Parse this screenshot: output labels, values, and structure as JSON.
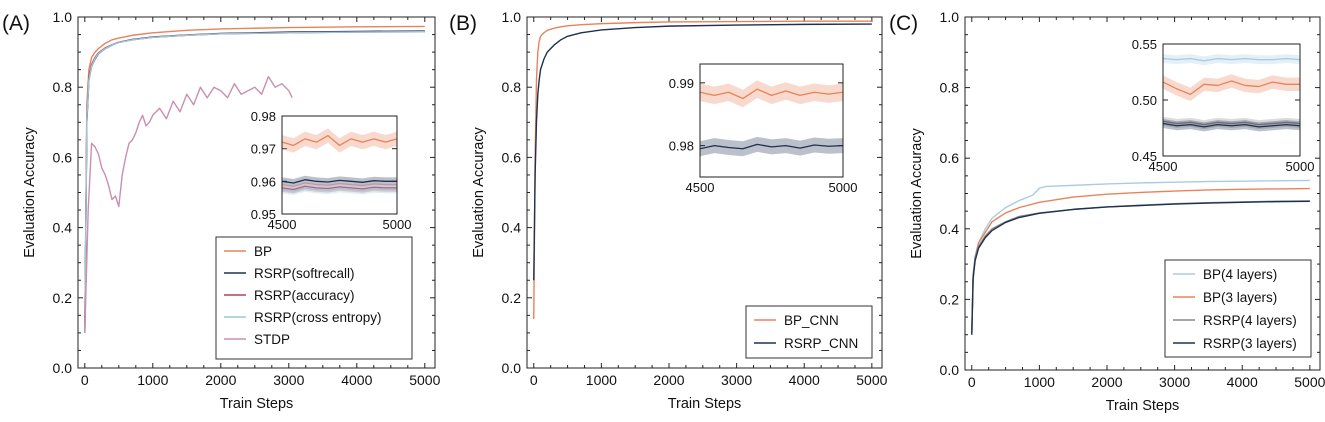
{
  "figure": {
    "panel_labels": [
      "(A)",
      "(B)",
      "(C)"
    ]
  },
  "chart_data": [
    {
      "type": "line",
      "label": "(A)",
      "xlabel": "Train Steps",
      "ylabel": "Evaluation Accuracy",
      "xlim": [
        -100,
        5150
      ],
      "ylim": [
        0.0,
        1.0
      ],
      "xticks": [
        0,
        1000,
        2000,
        3000,
        4000,
        5000
      ],
      "yticks": [
        0.0,
        0.2,
        0.4,
        0.6,
        0.8,
        1.0
      ],
      "legend_position": "bottom-right",
      "series": [
        {
          "name": "BP",
          "color": "#e8825a",
          "x": [
            0,
            30,
            60,
            100,
            150,
            200,
            300,
            400,
            500,
            700,
            1000,
            1500,
            2000,
            3000,
            4000,
            5000
          ],
          "y": [
            0.1,
            0.75,
            0.85,
            0.885,
            0.9,
            0.91,
            0.925,
            0.935,
            0.94,
            0.948,
            0.955,
            0.962,
            0.966,
            0.97,
            0.972,
            0.973
          ]
        },
        {
          "name": "RSRP(softrecall)",
          "color": "#1f3050",
          "x": [
            0,
            30,
            60,
            100,
            150,
            200,
            300,
            400,
            500,
            700,
            1000,
            1500,
            2000,
            3000,
            4000,
            5000
          ],
          "y": [
            0.1,
            0.7,
            0.82,
            0.86,
            0.88,
            0.895,
            0.91,
            0.92,
            0.928,
            0.936,
            0.943,
            0.949,
            0.953,
            0.957,
            0.959,
            0.96
          ]
        },
        {
          "name": "RSRP(accuracy)",
          "color": "#b0435a",
          "x": [
            0,
            30,
            60,
            100,
            150,
            200,
            300,
            400,
            500,
            700,
            1000,
            1500,
            2000,
            3000,
            4000,
            5000
          ],
          "y": [
            0.1,
            0.72,
            0.83,
            0.865,
            0.885,
            0.898,
            0.912,
            0.921,
            0.928,
            0.935,
            0.942,
            0.948,
            0.952,
            0.955,
            0.957,
            0.958
          ]
        },
        {
          "name": "RSRP(cross entropy)",
          "color": "#9ec5d6",
          "x": [
            0,
            30,
            60,
            100,
            150,
            200,
            300,
            400,
            500,
            700,
            1000,
            1500,
            2000,
            3000,
            4000,
            5000
          ],
          "y": [
            0.1,
            0.71,
            0.82,
            0.86,
            0.882,
            0.896,
            0.91,
            0.92,
            0.927,
            0.935,
            0.942,
            0.948,
            0.952,
            0.955,
            0.957,
            0.958
          ]
        },
        {
          "name": "STDP",
          "color": "#c98fb0",
          "x": [
            0,
            50,
            100,
            150,
            200,
            250,
            300,
            350,
            400,
            450,
            500,
            550,
            600,
            650,
            700,
            750,
            800,
            850,
            900,
            950,
            1000,
            1100,
            1200,
            1300,
            1400,
            1500,
            1600,
            1700,
            1800,
            1900,
            2000,
            2100,
            2200,
            2300,
            2400,
            2500,
            2600,
            2700,
            2800,
            2900,
            3000,
            3050
          ],
          "y": [
            0.1,
            0.45,
            0.64,
            0.63,
            0.61,
            0.57,
            0.55,
            0.52,
            0.48,
            0.49,
            0.46,
            0.55,
            0.6,
            0.64,
            0.65,
            0.67,
            0.7,
            0.72,
            0.69,
            0.7,
            0.72,
            0.74,
            0.71,
            0.76,
            0.73,
            0.78,
            0.75,
            0.8,
            0.77,
            0.8,
            0.79,
            0.77,
            0.81,
            0.78,
            0.79,
            0.8,
            0.78,
            0.83,
            0.8,
            0.81,
            0.79,
            0.77
          ]
        }
      ],
      "inset": {
        "legend": false,
        "xlim": [
          4500,
          5000
        ],
        "ylim": [
          0.95,
          0.98
        ],
        "xticks": [
          4500,
          5000
        ],
        "yticks": [
          0.95,
          0.96,
          0.97,
          0.98
        ],
        "position": "right-middle",
        "series": [
          {
            "name": "BP",
            "color": "#e8825a",
            "band": 0.0022,
            "x": [
              4500,
              4550,
              4600,
              4650,
              4700,
              4750,
              4800,
              4850,
              4900,
              4950,
              5000
            ],
            "y": [
              0.972,
              0.971,
              0.973,
              0.972,
              0.974,
              0.971,
              0.973,
              0.972,
              0.973,
              0.972,
              0.973
            ]
          },
          {
            "name": "RSRP(softrecall)",
            "color": "#1f3050",
            "band": 0.0012,
            "x": [
              4500,
              4550,
              4600,
              4650,
              4700,
              4750,
              4800,
              4850,
              4900,
              4950,
              5000
            ],
            "y": [
              0.96,
              0.9595,
              0.9605,
              0.96,
              0.9598,
              0.9603,
              0.96,
              0.9597,
              0.9602,
              0.96,
              0.96
            ]
          },
          {
            "name": "RSRP(accuracy)",
            "color": "#b0435a",
            "band": 0.0012,
            "x": [
              4500,
              4550,
              4600,
              4650,
              4700,
              4750,
              4800,
              4850,
              4900,
              4950,
              5000
            ],
            "y": [
              0.958,
              0.9575,
              0.9585,
              0.958,
              0.9578,
              0.9583,
              0.958,
              0.9577,
              0.9582,
              0.958,
              0.958
            ]
          },
          {
            "name": "RSRP(cross entropy)",
            "color": "#9ec5d6",
            "band": 0.0012,
            "x": [
              4500,
              4550,
              4600,
              4650,
              4700,
              4750,
              4800,
              4850,
              4900,
              4950,
              5000
            ],
            "y": [
              0.9575,
              0.957,
              0.958,
              0.9575,
              0.9573,
              0.9578,
              0.9575,
              0.9572,
              0.9577,
              0.9575,
              0.9575
            ]
          }
        ]
      }
    },
    {
      "type": "line",
      "label": "(B)",
      "xlabel": "Train Steps",
      "ylabel": "Evaluation Accuracy",
      "xlim": [
        -100,
        5150
      ],
      "ylim": [
        0.0,
        1.0
      ],
      "xticks": [
        0,
        1000,
        2000,
        3000,
        4000,
        5000
      ],
      "yticks": [
        0.0,
        0.2,
        0.4,
        0.6,
        0.8,
        1.0
      ],
      "legend_position": "bottom-right",
      "series": [
        {
          "name": "BP_CNN",
          "color": "#e8825a",
          "x": [
            0,
            20,
            40,
            60,
            80,
            100,
            150,
            200,
            300,
            400,
            500,
            700,
            1000,
            1500,
            2000,
            3000,
            4000,
            5000
          ],
          "y": [
            0.14,
            0.6,
            0.82,
            0.9,
            0.93,
            0.945,
            0.955,
            0.962,
            0.968,
            0.972,
            0.975,
            0.978,
            0.981,
            0.984,
            0.986,
            0.987,
            0.988,
            0.988
          ]
        },
        {
          "name": "RSRP_CNN",
          "color": "#1f3050",
          "x": [
            0,
            20,
            40,
            60,
            80,
            100,
            150,
            200,
            300,
            400,
            500,
            700,
            1000,
            1500,
            2000,
            3000,
            4000,
            5000
          ],
          "y": [
            0.25,
            0.55,
            0.7,
            0.78,
            0.82,
            0.85,
            0.88,
            0.9,
            0.92,
            0.935,
            0.945,
            0.955,
            0.963,
            0.97,
            0.974,
            0.977,
            0.979,
            0.98
          ]
        }
      ],
      "inset": {
        "legend": false,
        "xlim": [
          4500,
          5000
        ],
        "ylim": [
          0.975,
          0.993
        ],
        "xticks": [
          4500,
          5000
        ],
        "yticks": [
          0.98,
          0.99
        ],
        "position": "top-right",
        "series": [
          {
            "name": "BP_CNN",
            "color": "#e8825a",
            "band": 0.0014,
            "x": [
              4500,
              4550,
              4600,
              4650,
              4700,
              4750,
              4800,
              4850,
              4900,
              4950,
              5000
            ],
            "y": [
              0.9885,
              0.988,
              0.9885,
              0.9875,
              0.989,
              0.988,
              0.9887,
              0.988,
              0.9885,
              0.9882,
              0.9885
            ]
          },
          {
            "name": "RSRP_CNN",
            "color": "#1f3050",
            "band": 0.0012,
            "x": [
              4500,
              4550,
              4600,
              4650,
              4700,
              4750,
              4800,
              4850,
              4900,
              4950,
              5000
            ],
            "y": [
              0.9795,
              0.98,
              0.9797,
              0.9795,
              0.9802,
              0.9798,
              0.98,
              0.9796,
              0.9801,
              0.9799,
              0.98
            ]
          }
        ]
      }
    },
    {
      "type": "line",
      "label": "(C)",
      "xlabel": "Train Steps",
      "ylabel": "Evaluation Accuracy",
      "xlim": [
        -100,
        5150
      ],
      "ylim": [
        0.0,
        1.0
      ],
      "xticks": [
        0,
        1000,
        2000,
        3000,
        4000,
        5000
      ],
      "yticks": [
        0.0,
        0.2,
        0.4,
        0.6,
        0.8,
        1.0
      ],
      "legend_position": "bottom-right",
      "series": [
        {
          "name": "BP(4 layers)",
          "color": "#a9cde0",
          "x": [
            0,
            20,
            50,
            100,
            200,
            300,
            500,
            700,
            900,
            1000,
            1100,
            1500,
            2000,
            2500,
            3000,
            3500,
            4000,
            4500,
            5000
          ],
          "y": [
            0.1,
            0.25,
            0.32,
            0.36,
            0.4,
            0.43,
            0.46,
            0.48,
            0.495,
            0.515,
            0.52,
            0.523,
            0.527,
            0.53,
            0.532,
            0.534,
            0.535,
            0.536,
            0.537
          ]
        },
        {
          "name": "BP(3 layers)",
          "color": "#e8825a",
          "x": [
            0,
            20,
            50,
            100,
            200,
            300,
            500,
            700,
            1000,
            1500,
            2000,
            2500,
            3000,
            3500,
            4000,
            4500,
            5000
          ],
          "y": [
            0.1,
            0.26,
            0.32,
            0.36,
            0.39,
            0.42,
            0.445,
            0.46,
            0.475,
            0.49,
            0.498,
            0.503,
            0.507,
            0.51,
            0.512,
            0.513,
            0.514
          ]
        },
        {
          "name": "RSRP(4 layers)",
          "color": "#888888",
          "x": [
            0,
            20,
            50,
            100,
            200,
            300,
            500,
            700,
            1000,
            1500,
            2000,
            2500,
            3000,
            3500,
            4000,
            4500,
            5000
          ],
          "y": [
            0.1,
            0.27,
            0.32,
            0.35,
            0.38,
            0.4,
            0.42,
            0.435,
            0.445,
            0.455,
            0.462,
            0.467,
            0.471,
            0.474,
            0.476,
            0.478,
            0.479
          ]
        },
        {
          "name": "RSRP(3 layers)",
          "color": "#1f3050",
          "x": [
            0,
            20,
            50,
            100,
            200,
            300,
            500,
            700,
            1000,
            1500,
            2000,
            2500,
            3000,
            3500,
            4000,
            4500,
            5000
          ],
          "y": [
            0.1,
            0.26,
            0.31,
            0.345,
            0.375,
            0.395,
            0.418,
            0.432,
            0.444,
            0.455,
            0.462,
            0.466,
            0.47,
            0.473,
            0.475,
            0.477,
            0.478
          ]
        }
      ],
      "inset": {
        "legend": false,
        "xlim": [
          4500,
          5000
        ],
        "ylim": [
          0.45,
          0.55
        ],
        "xticks": [
          4500,
          5000
        ],
        "yticks": [
          0.45,
          0.5,
          0.55
        ],
        "position": "top-right",
        "series": [
          {
            "name": "BP(4 layers)",
            "color": "#a9cde0",
            "band": 0.004,
            "x": [
              4500,
              4550,
              4600,
              4650,
              4700,
              4750,
              4800,
              4850,
              4900,
              4950,
              5000
            ],
            "y": [
              0.537,
              0.536,
              0.537,
              0.535,
              0.537,
              0.536,
              0.537,
              0.536,
              0.536,
              0.537,
              0.536
            ]
          },
          {
            "name": "BP(3 layers)",
            "color": "#e8825a",
            "band": 0.006,
            "x": [
              4500,
              4550,
              4600,
              4650,
              4700,
              4750,
              4800,
              4850,
              4900,
              4950,
              5000
            ],
            "y": [
              0.516,
              0.51,
              0.505,
              0.514,
              0.513,
              0.517,
              0.513,
              0.512,
              0.516,
              0.514,
              0.514
            ]
          },
          {
            "name": "RSRP(4 layers)",
            "color": "#888888",
            "band": 0.004,
            "x": [
              4500,
              4550,
              4600,
              4650,
              4700,
              4750,
              4800,
              4850,
              4900,
              4950,
              5000
            ],
            "y": [
              0.481,
              0.479,
              0.48,
              0.478,
              0.48,
              0.479,
              0.48,
              0.478,
              0.479,
              0.48,
              0.479
            ]
          },
          {
            "name": "RSRP(3 layers)",
            "color": "#1f3050",
            "band": 0.004,
            "x": [
              4500,
              4550,
              4600,
              4650,
              4700,
              4750,
              4800,
              4850,
              4900,
              4950,
              5000
            ],
            "y": [
              0.479,
              0.477,
              0.478,
              0.476,
              0.478,
              0.477,
              0.478,
              0.476,
              0.477,
              0.478,
              0.477
            ]
          }
        ]
      }
    }
  ]
}
